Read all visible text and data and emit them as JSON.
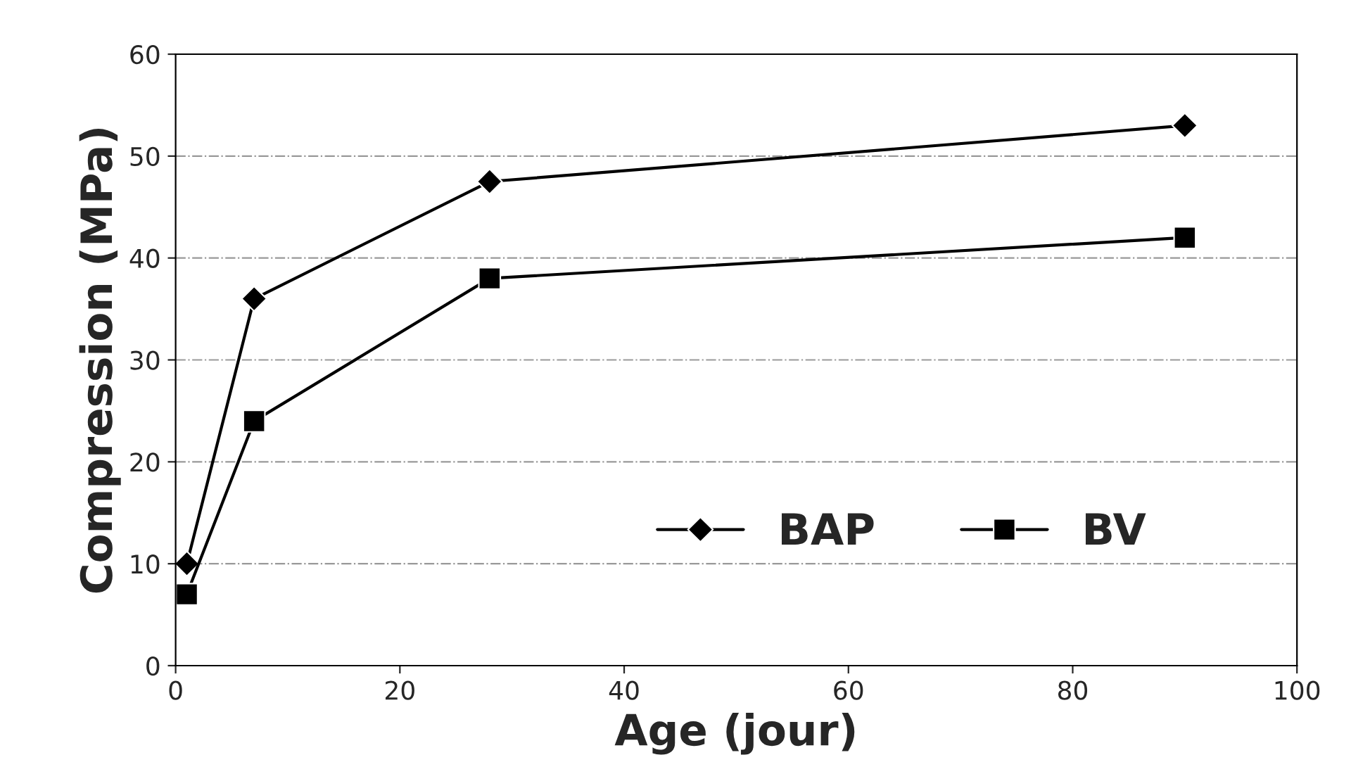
{
  "chart_data": {
    "type": "line",
    "xlabel": "Age (jour)",
    "ylabel": "Compression (MPa)",
    "xlim": [
      0,
      100
    ],
    "xticks": [
      0,
      20,
      40,
      60,
      80,
      100
    ],
    "ylim": [
      0,
      60
    ],
    "yticks": [
      0,
      10,
      20,
      30,
      40,
      50,
      60
    ],
    "grid": "y",
    "legend": "lower right",
    "series": [
      {
        "name": "BAP",
        "color": "#000000",
        "marker": "diamond",
        "x": [
          1,
          7,
          28,
          90
        ],
        "values": [
          10,
          36,
          47.5,
          53
        ]
      },
      {
        "name": "BV",
        "color": "#000000",
        "marker": "square",
        "x": [
          1,
          7,
          28,
          90
        ],
        "values": [
          7,
          24,
          38,
          42
        ]
      }
    ]
  }
}
